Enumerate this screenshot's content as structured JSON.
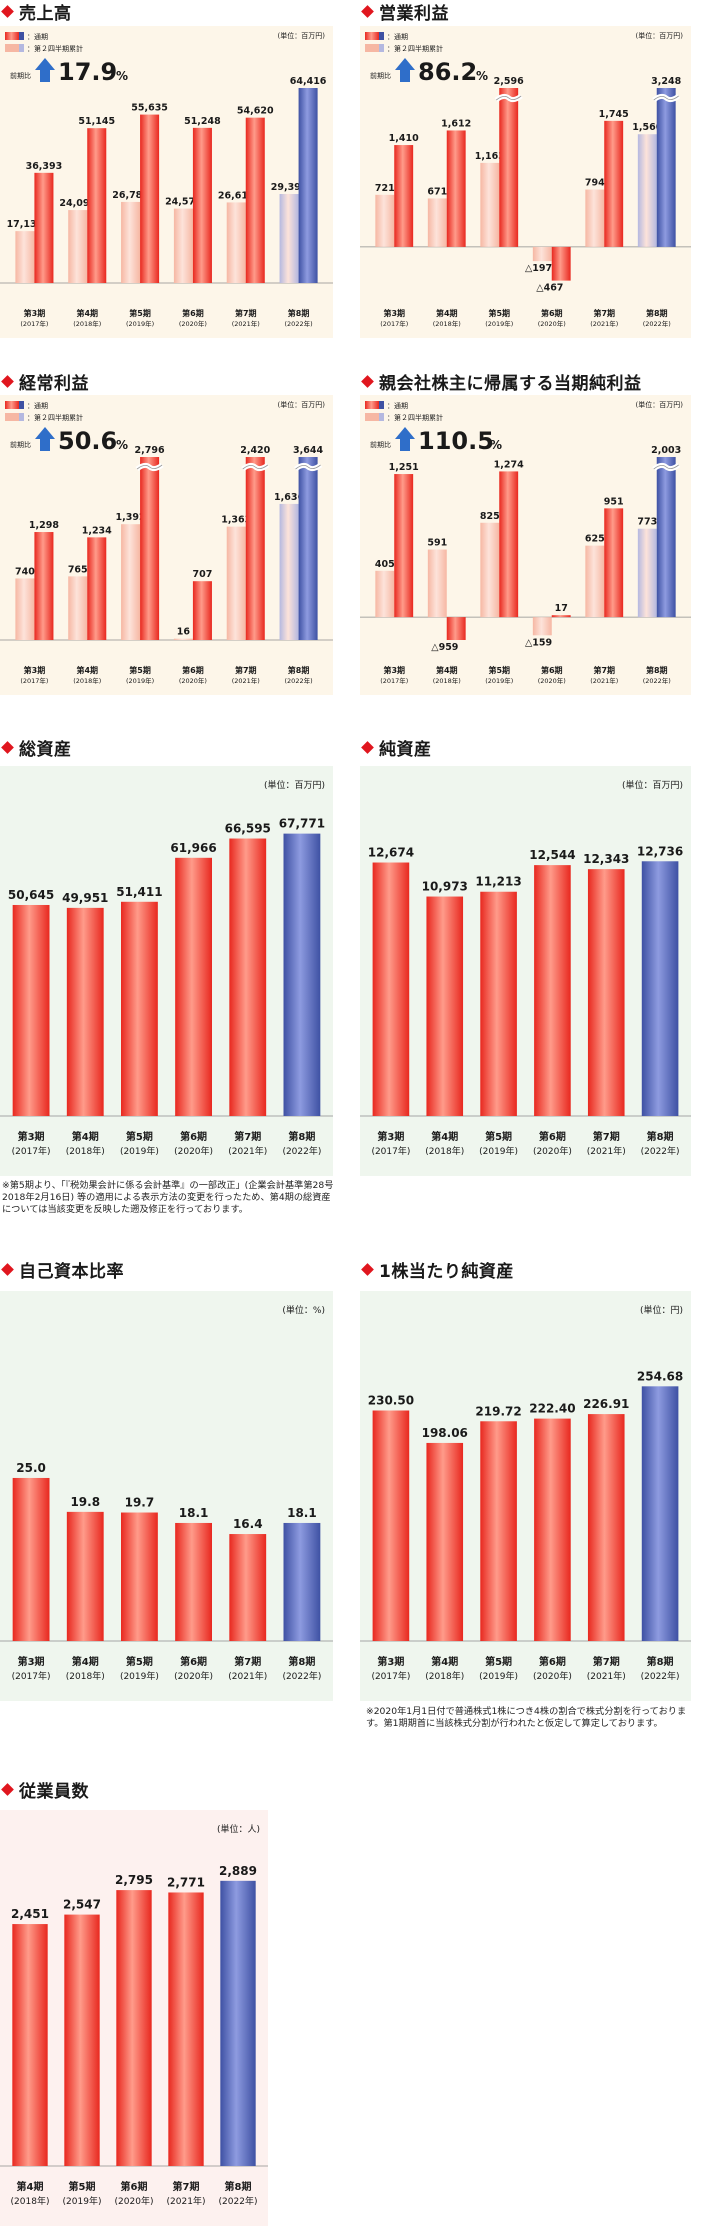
{
  "colors": {
    "current_bar": "#e8281f",
    "half_bar": "#f6b7a3",
    "latest_bar": "#3e51a3",
    "latest_half": "#b4b8e0",
    "panel_warm": "#fdf6e9",
    "panel_green": "#eff6ee",
    "panel_pink": "#fdf1ef",
    "accent": "#e0161e",
    "arrow": "#2f6ec9"
  },
  "legend": {
    "current": "：通期",
    "half": "：第２四半期累計"
  },
  "periods": {
    "p3": {
      "label": "第3期",
      "year": "(2017年)"
    },
    "p4": {
      "label": "第4期",
      "year": "(2018年)"
    },
    "p5": {
      "label": "第5期",
      "year": "(2019年)"
    },
    "p6": {
      "label": "第6期",
      "year": "(2020年)"
    },
    "p7": {
      "label": "第7期",
      "year": "(2021年)"
    },
    "p8": {
      "label": "第8期",
      "year": "(2022年)"
    }
  },
  "chart_data": [
    {
      "id": "sales",
      "type": "bar",
      "title": "売上高",
      "unit": "(単位：百万円)",
      "yoy_label": "前期比",
      "yoy_value": "17.9",
      "yoy_suffix": "%",
      "categories": [
        "p3",
        "p4",
        "p5",
        "p6",
        "p7",
        "p8"
      ],
      "series": [
        {
          "name": "：通期",
          "values": [
            36393,
            51145,
            55635,
            51248,
            54620,
            64416
          ],
          "labels": [
            "36,393",
            "51,145",
            "55,635",
            "51,248",
            "54,620",
            "64,416"
          ]
        },
        {
          "name": "：第２四半期累計",
          "values": [
            17135,
            24091,
            26783,
            24579,
            26617,
            29399
          ],
          "labels": [
            "17,135",
            "24,091",
            "26,783",
            "24,579",
            "26,617",
            "29,399"
          ]
        }
      ],
      "ylim": [
        0,
        64416
      ],
      "break": false
    },
    {
      "id": "op",
      "type": "bar",
      "title": "営業利益",
      "unit": "(単位：百万円)",
      "yoy_label": "前期比",
      "yoy_value": "86.2",
      "yoy_suffix": "%",
      "categories": [
        "p3",
        "p4",
        "p5",
        "p6",
        "p7",
        "p8"
      ],
      "series": [
        {
          "name": "：通期",
          "values": [
            1410,
            1612,
            2596,
            -467,
            1745,
            3248
          ],
          "labels": [
            "1,410",
            "1,612",
            "2,596",
            "△467",
            "1,745",
            "3,248"
          ]
        },
        {
          "name": "：第２四半期累計",
          "values": [
            721,
            671,
            1163,
            -197,
            794,
            1560
          ],
          "labels": [
            "721",
            "671",
            "1,163",
            "△197",
            "794",
            "1,560"
          ]
        }
      ],
      "ylim": [
        -500,
        2200
      ],
      "break": true
    },
    {
      "id": "ordinary",
      "type": "bar",
      "title": "経常利益",
      "unit": "(単位：百万円)",
      "yoy_label": "前期比",
      "yoy_value": "50.6",
      "yoy_suffix": "%",
      "categories": [
        "p3",
        "p4",
        "p5",
        "p6",
        "p7",
        "p8"
      ],
      "series": [
        {
          "name": "：通期",
          "values": [
            1298,
            1234,
            2796,
            707,
            2420,
            3644
          ],
          "labels": [
            "1,298",
            "1,234",
            "2,796",
            "707",
            "2,420",
            "3,644"
          ]
        },
        {
          "name": "：第２四半期累計",
          "values": [
            740,
            765,
            1392,
            16,
            1363,
            1636
          ],
          "labels": [
            "740",
            "765",
            "1,392",
            "16",
            "1,363",
            "1,636"
          ]
        }
      ],
      "ylim": [
        0,
        2200
      ],
      "break": true
    },
    {
      "id": "net",
      "type": "bar",
      "title": "親会社株主に帰属する当期純利益",
      "unit": "(単位：百万円)",
      "yoy_label": "前期比",
      "yoy_value": "110.5",
      "yoy_suffix": "%",
      "categories": [
        "p3",
        "p4",
        "p5",
        "p6",
        "p7",
        "p8"
      ],
      "series": [
        {
          "name": "：通期",
          "values": [
            1251,
            -959,
            1274,
            17,
            951,
            2003
          ],
          "labels": [
            "1,251",
            "△959",
            "1,274",
            "17",
            "951",
            "2,003"
          ]
        },
        {
          "name": "：第２四半期累計",
          "values": [
            405,
            591,
            825,
            -159,
            625,
            773
          ],
          "labels": [
            "405",
            "591",
            "825",
            "△159",
            "625",
            "773"
          ]
        }
      ],
      "ylim": [
        -200,
        1400
      ],
      "break": true
    },
    {
      "id": "assets",
      "type": "bar",
      "title": "総資産",
      "unit": "(単位：百万円)",
      "categories": [
        "p3",
        "p4",
        "p5",
        "p6",
        "p7",
        "p8"
      ],
      "values": [
        50645,
        49951,
        51411,
        61966,
        66595,
        67771
      ],
      "labels": [
        "50,645",
        "49,951",
        "51,411",
        "61,966",
        "66,595",
        "67,771"
      ],
      "ylim": [
        0,
        72000
      ]
    },
    {
      "id": "equity",
      "type": "bar",
      "title": "純資産",
      "unit": "(単位：百万円)",
      "categories": [
        "p3",
        "p4",
        "p5",
        "p6",
        "p7",
        "p8"
      ],
      "values": [
        12674,
        10973,
        11213,
        12544,
        12343,
        12736
      ],
      "labels": [
        "12,674",
        "10,973",
        "11,213",
        "12,544",
        "12,343",
        "12,736"
      ],
      "ylim": [
        0,
        15000
      ]
    },
    {
      "id": "ratio",
      "type": "bar",
      "title": "自己資本比率",
      "unit": "(単位：%)",
      "categories": [
        "p3",
        "p4",
        "p5",
        "p6",
        "p7",
        "p8"
      ],
      "values": [
        25.0,
        19.8,
        19.7,
        18.1,
        16.4,
        18.1
      ],
      "labels": [
        "25.0",
        "19.8",
        "19.7",
        "18.1",
        "16.4",
        "18.1"
      ],
      "ylim": [
        0,
        46
      ]
    },
    {
      "id": "bps",
      "type": "bar",
      "title": "1株当たり純資産",
      "unit": "(単位：円)",
      "categories": [
        "p3",
        "p4",
        "p5",
        "p6",
        "p7",
        "p8"
      ],
      "values": [
        230.5,
        198.06,
        219.72,
        222.4,
        226.91,
        254.68
      ],
      "labels": [
        "230.50",
        "198.06",
        "219.72",
        "222.40",
        "226.91",
        "254.68"
      ],
      "ylim": [
        0,
        300
      ]
    },
    {
      "id": "employees",
      "type": "bar",
      "title": "従業員数",
      "unit": "(単位：人)",
      "categories": [
        "p4",
        "p5",
        "p6",
        "p7",
        "p8"
      ],
      "values": [
        2451,
        2547,
        2795,
        2771,
        2889
      ],
      "labels": [
        "2,451",
        "2,547",
        "2,795",
        "2,771",
        "2,889"
      ],
      "ylim": [
        0,
        3100
      ]
    }
  ],
  "notes": {
    "assets": "※第5期より、「『税効果会計に係る会計基準』の一部改正」(企業会計基準第28号 2018年2月16日) 等の適用による表示方法の変更を行ったため、第4期の総資産については当該変更を反映した遡及修正を行っております。",
    "bps": "※2020年1月1日付で普通株式1株につき4株の割合で株式分割を行っております。第1期期首に当該株式分割が行われたと仮定して算定しております。"
  }
}
